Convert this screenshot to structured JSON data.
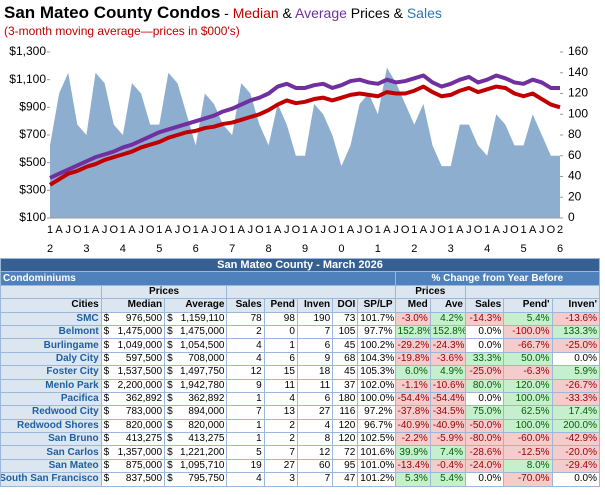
{
  "chart_data": {
    "type": "combo",
    "title_parts": [
      {
        "text": "San Mateo County Condos",
        "color": "#000000"
      },
      {
        "text": " - ",
        "color": "#000000"
      },
      {
        "text": "Median",
        "color": "#c00000"
      },
      {
        "text": " & ",
        "color": "#000000"
      },
      {
        "text": "Average",
        "color": "#7030a0"
      },
      {
        "text": " Prices & ",
        "color": "#000000"
      },
      {
        "text": "Sales",
        "color": "#2e75b6"
      }
    ],
    "subtitle": "(3-month moving average—prices in $000's)",
    "categories": [
      "1",
      "A",
      "J",
      "O",
      "1",
      "A",
      "J",
      "O",
      "1",
      "A",
      "J",
      "O",
      "1",
      "A",
      "J",
      "O",
      "1",
      "A",
      "J",
      "O",
      "1",
      "A",
      "J",
      "O",
      "1",
      "A",
      "J",
      "O",
      "1",
      "A",
      "J",
      "O",
      "1",
      "A",
      "J",
      "O",
      "1",
      "A",
      "J",
      "O",
      "1",
      "A",
      "J",
      "O",
      "1",
      "A",
      "J",
      "O",
      "1",
      "A",
      "J",
      "O",
      "1",
      "A",
      "J",
      "O",
      "2"
    ],
    "category_groups": [
      "2",
      "3",
      "4",
      "5",
      "6",
      "7",
      "8",
      "9",
      "0",
      "1",
      "2",
      "3",
      "4",
      "5",
      "6"
    ],
    "series": [
      {
        "name": "Sales",
        "type": "area",
        "axis": "y2",
        "color": "#8eaed0",
        "values": [
          70,
          120,
          140,
          90,
          80,
          140,
          130,
          90,
          80,
          130,
          120,
          90,
          90,
          140,
          130,
          100,
          70,
          120,
          110,
          90,
          80,
          130,
          120,
          90,
          70,
          110,
          90,
          60,
          60,
          110,
          100,
          80,
          50,
          70,
          110,
          120,
          100,
          145,
          130,
          110,
          90,
          110,
          70,
          50,
          50,
          90,
          90,
          70,
          60,
          100,
          90,
          70,
          70,
          100,
          80,
          60,
          60
        ]
      },
      {
        "name": "Average",
        "type": "line",
        "axis": "y",
        "color": "#7030a0",
        "values": [
          390,
          420,
          450,
          480,
          510,
          540,
          560,
          580,
          610,
          630,
          660,
          690,
          720,
          740,
          760,
          780,
          800,
          820,
          840,
          870,
          890,
          920,
          950,
          970,
          1000,
          1050,
          1070,
          1040,
          1040,
          1060,
          1070,
          1040,
          1060,
          1090,
          1100,
          1080,
          1070,
          1100,
          1080,
          1090,
          1110,
          1130,
          1080,
          1050,
          1070,
          1100,
          1120,
          1080,
          1100,
          1130,
          1110,
          1080,
          1070,
          1100,
          1080,
          1040,
          1040
        ]
      },
      {
        "name": "Median",
        "type": "line",
        "axis": "y",
        "color": "#c00000",
        "values": [
          340,
          380,
          420,
          440,
          470,
          490,
          520,
          540,
          560,
          580,
          610,
          630,
          650,
          680,
          700,
          720,
          730,
          750,
          760,
          780,
          790,
          810,
          830,
          850,
          880,
          920,
          950,
          930,
          940,
          960,
          970,
          950,
          970,
          990,
          1000,
          990,
          980,
          1010,
          1000,
          1000,
          1020,
          1050,
          1010,
          980,
          990,
          1020,
          1040,
          1010,
          1030,
          1050,
          1040,
          1000,
          980,
          1000,
          960,
          920,
          900
        ]
      }
    ],
    "ylim": [
      100,
      1300
    ],
    "yticks": [
      {
        "value": 100,
        "label": "$100"
      },
      {
        "value": 300,
        "label": "$300"
      },
      {
        "value": 500,
        "label": "$500"
      },
      {
        "value": 700,
        "label": "$700"
      },
      {
        "value": 900,
        "label": "$900"
      },
      {
        "value": 1100,
        "label": "$1,100"
      },
      {
        "value": 1300,
        "label": "$1,300"
      }
    ],
    "y2lim": [
      0,
      160
    ],
    "y2ticks": [
      0,
      20,
      40,
      60,
      80,
      100,
      120,
      140,
      160
    ],
    "grid": false
  },
  "table": {
    "title": "San Mateo County - March 2026",
    "group_left": "Condominiums",
    "group_right": "% Change from Year Before",
    "sub_left": "Prices",
    "sub_right": "Prices",
    "currency": "$",
    "columns": [
      "Cities",
      "Median",
      "Average",
      "Sales",
      "Pend",
      "Inven",
      "DOI",
      "SP/LP",
      "Med",
      "Ave",
      "Sales",
      "Pend'",
      "Inven'"
    ],
    "rows": [
      [
        "SMC",
        "976,500",
        "1,159,110",
        "78",
        "98",
        "190",
        "73",
        "101.7%",
        "-3.0%",
        "4.2%",
        "-14.3%",
        "5.4%",
        "-13.6%"
      ],
      [
        "Belmont",
        "1,475,000",
        "1,475,000",
        "2",
        "0",
        "7",
        "105",
        "97.7%",
        "152.8%",
        "152.8%",
        "0.0%",
        "-100.0%",
        "133.3%"
      ],
      [
        "Burlingame",
        "1,049,000",
        "1,054,500",
        "4",
        "1",
        "6",
        "45",
        "100.2%",
        "-29.2%",
        "-24.3%",
        "0.0%",
        "-66.7%",
        "-25.0%"
      ],
      [
        "Daly City",
        "597,500",
        "708,000",
        "4",
        "6",
        "9",
        "68",
        "104.3%",
        "-19.8%",
        "-3.6%",
        "33.3%",
        "50.0%",
        "0.0%"
      ],
      [
        "Foster City",
        "1,537,500",
        "1,497,750",
        "12",
        "15",
        "18",
        "45",
        "105.3%",
        "6.0%",
        "4.9%",
        "-25.0%",
        "-6.3%",
        "5.9%"
      ],
      [
        "Menlo Park",
        "2,200,000",
        "1,942,780",
        "9",
        "11",
        "11",
        "37",
        "102.0%",
        "-1.1%",
        "-10.6%",
        "80.0%",
        "120.0%",
        "-26.7%"
      ],
      [
        "Pacifica",
        "362,892",
        "362,892",
        "1",
        "4",
        "6",
        "180",
        "100.0%",
        "-54.4%",
        "-54.4%",
        "0.0%",
        "100.0%",
        "-33.3%"
      ],
      [
        "Redwood City",
        "783,000",
        "894,000",
        "7",
        "13",
        "27",
        "116",
        "97.2%",
        "-37.8%",
        "-34.5%",
        "75.0%",
        "62.5%",
        "17.4%"
      ],
      [
        "Redwood Shores",
        "820,000",
        "820,000",
        "1",
        "2",
        "4",
        "120",
        "96.7%",
        "-40.9%",
        "-40.9%",
        "-50.0%",
        "100.0%",
        "200.0%"
      ],
      [
        "San Bruno",
        "413,275",
        "413,275",
        "1",
        "2",
        "8",
        "120",
        "102.5%",
        "-2.2%",
        "-5.9%",
        "-80.0%",
        "-60.0%",
        "-42.9%"
      ],
      [
        "San Carlos",
        "1,357,000",
        "1,221,200",
        "5",
        "7",
        "12",
        "72",
        "101.6%",
        "39.9%",
        "7.4%",
        "-28.6%",
        "-12.5%",
        "-20.0%"
      ],
      [
        "San Mateo",
        "875,000",
        "1,095,710",
        "19",
        "27",
        "60",
        "95",
        "101.0%",
        "-13.4%",
        "-0.4%",
        "-24.0%",
        "8.0%",
        "-29.4%"
      ],
      [
        "South San Francisco",
        "837,500",
        "795,750",
        "4",
        "3",
        "7",
        "47",
        "101.2%",
        "5.3%",
        "5.4%",
        "0.0%",
        "-70.0%",
        "0.0%"
      ]
    ]
  }
}
